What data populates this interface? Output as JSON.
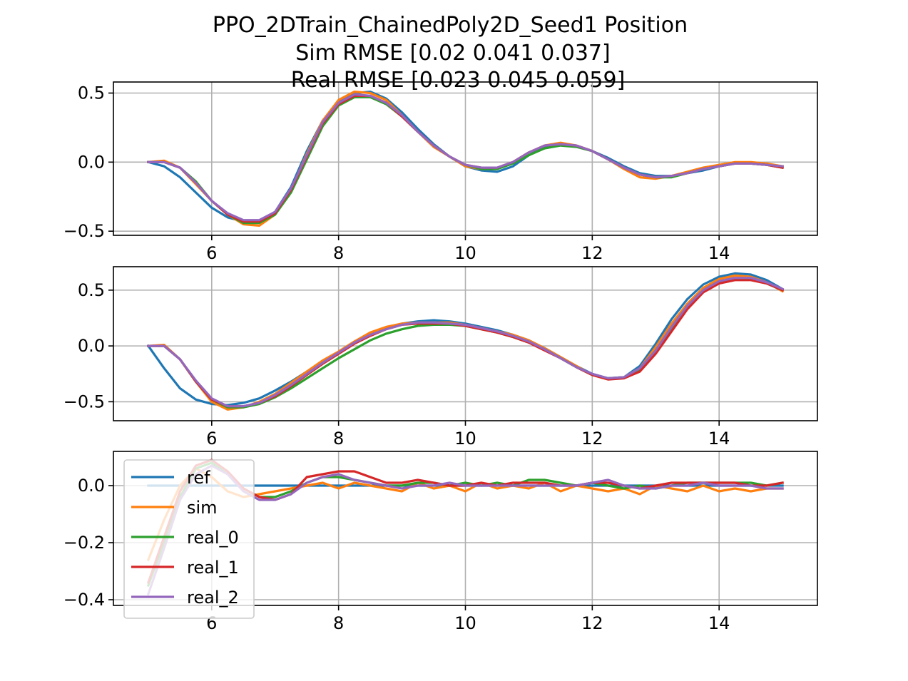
{
  "figure": {
    "title_lines": [
      "PPO_2DTrain_ChainedPoly2D_Seed1   Position",
      "Sim RMSE [0.02  0.041 0.037]",
      "Real RMSE [0.023 0.045 0.059]"
    ]
  },
  "chart_data": [
    {
      "type": "line",
      "title": "",
      "xlabel": "",
      "ylabel": "",
      "xlim": [
        4.45,
        15.55
      ],
      "ylim": [
        -0.53,
        0.58
      ],
      "xticks": [
        6,
        8,
        10,
        12,
        14
      ],
      "xtick_labels": [
        "6",
        "8",
        "10",
        "12",
        "14"
      ],
      "yticks": [
        -0.5,
        0.0,
        0.5
      ],
      "ytick_labels": [
        "−0.5",
        "0.0",
        "0.5"
      ],
      "grid": true,
      "x": [
        5.0,
        5.25,
        5.5,
        5.75,
        6.0,
        6.25,
        6.5,
        6.75,
        7.0,
        7.25,
        7.5,
        7.75,
        8.0,
        8.25,
        8.5,
        8.75,
        9.0,
        9.25,
        9.5,
        9.75,
        10.0,
        10.25,
        10.5,
        10.75,
        11.0,
        11.25,
        11.5,
        11.75,
        12.0,
        12.25,
        12.5,
        12.75,
        13.0,
        13.25,
        13.5,
        13.75,
        14.0,
        14.25,
        14.5,
        14.75,
        15.0
      ],
      "series": [
        {
          "name": "ref",
          "color": "#1f77b4",
          "values": [
            0.0,
            -0.03,
            -0.11,
            -0.22,
            -0.33,
            -0.4,
            -0.43,
            -0.43,
            -0.36,
            -0.18,
            0.08,
            0.3,
            0.44,
            0.5,
            0.51,
            0.46,
            0.36,
            0.24,
            0.13,
            0.04,
            -0.03,
            -0.06,
            -0.07,
            -0.03,
            0.05,
            0.11,
            0.13,
            0.12,
            0.08,
            0.03,
            -0.03,
            -0.08,
            -0.1,
            -0.1,
            -0.08,
            -0.06,
            -0.03,
            -0.01,
            -0.01,
            -0.02,
            -0.03
          ]
        },
        {
          "name": "sim",
          "color": "#ff7f0e",
          "values": [
            0.0,
            0.01,
            -0.04,
            -0.16,
            -0.28,
            -0.38,
            -0.45,
            -0.46,
            -0.38,
            -0.2,
            0.06,
            0.3,
            0.45,
            0.51,
            0.5,
            0.45,
            0.34,
            0.22,
            0.11,
            0.04,
            -0.03,
            -0.05,
            -0.05,
            0.0,
            0.07,
            0.12,
            0.14,
            0.12,
            0.08,
            0.02,
            -0.05,
            -0.11,
            -0.12,
            -0.1,
            -0.07,
            -0.04,
            -0.02,
            0.0,
            0.0,
            -0.01,
            -0.03
          ]
        },
        {
          "name": "real_0",
          "color": "#2ca02c",
          "values": [
            0.0,
            0.0,
            -0.04,
            -0.14,
            -0.28,
            -0.38,
            -0.44,
            -0.44,
            -0.38,
            -0.22,
            0.02,
            0.26,
            0.41,
            0.47,
            0.47,
            0.42,
            0.33,
            0.22,
            0.12,
            0.04,
            -0.02,
            -0.05,
            -0.05,
            -0.01,
            0.05,
            0.1,
            0.12,
            0.11,
            0.08,
            0.02,
            -0.04,
            -0.09,
            -0.11,
            -0.11,
            -0.08,
            -0.05,
            -0.03,
            -0.01,
            -0.01,
            -0.02,
            -0.04
          ]
        },
        {
          "name": "real_1",
          "color": "#d62728",
          "values": [
            0.0,
            0.0,
            -0.04,
            -0.15,
            -0.28,
            -0.38,
            -0.43,
            -0.43,
            -0.37,
            -0.2,
            0.04,
            0.28,
            0.42,
            0.48,
            0.48,
            0.43,
            0.33,
            0.22,
            0.12,
            0.04,
            -0.02,
            -0.04,
            -0.04,
            0.0,
            0.07,
            0.12,
            0.13,
            0.12,
            0.08,
            0.02,
            -0.04,
            -0.09,
            -0.11,
            -0.1,
            -0.08,
            -0.05,
            -0.03,
            -0.01,
            -0.01,
            -0.02,
            -0.04
          ]
        },
        {
          "name": "real_2",
          "color": "#9467bd",
          "values": [
            0.0,
            0.0,
            -0.04,
            -0.15,
            -0.28,
            -0.37,
            -0.42,
            -0.42,
            -0.36,
            -0.19,
            0.05,
            0.29,
            0.43,
            0.49,
            0.48,
            0.43,
            0.34,
            0.22,
            0.12,
            0.04,
            -0.02,
            -0.04,
            -0.04,
            0.0,
            0.07,
            0.12,
            0.13,
            0.12,
            0.08,
            0.02,
            -0.04,
            -0.09,
            -0.11,
            -0.1,
            -0.08,
            -0.05,
            -0.03,
            -0.01,
            -0.01,
            -0.02,
            -0.03
          ]
        }
      ]
    },
    {
      "type": "line",
      "title": "",
      "xlabel": "",
      "ylabel": "",
      "xlim": [
        4.45,
        15.55
      ],
      "ylim": [
        -0.67,
        0.71
      ],
      "xticks": [
        6,
        8,
        10,
        12,
        14
      ],
      "xtick_labels": [
        "6",
        "8",
        "10",
        "12",
        "14"
      ],
      "yticks": [
        -0.5,
        0.0,
        0.5
      ],
      "ytick_labels": [
        "−0.5",
        "0.0",
        "0.5"
      ],
      "grid": true,
      "x": [
        5.0,
        5.25,
        5.5,
        5.75,
        6.0,
        6.25,
        6.5,
        6.75,
        7.0,
        7.25,
        7.5,
        7.75,
        8.0,
        8.25,
        8.5,
        8.75,
        9.0,
        9.25,
        9.5,
        9.75,
        10.0,
        10.25,
        10.5,
        10.75,
        11.0,
        11.25,
        11.5,
        11.75,
        12.0,
        12.25,
        12.5,
        12.75,
        13.0,
        13.25,
        13.5,
        13.75,
        14.0,
        14.25,
        14.5,
        14.75,
        15.0
      ],
      "series": [
        {
          "name": "ref",
          "color": "#1f77b4",
          "values": [
            0.0,
            -0.2,
            -0.38,
            -0.48,
            -0.52,
            -0.53,
            -0.51,
            -0.47,
            -0.4,
            -0.32,
            -0.23,
            -0.14,
            -0.06,
            0.03,
            0.1,
            0.16,
            0.2,
            0.22,
            0.23,
            0.22,
            0.2,
            0.17,
            0.14,
            0.1,
            0.05,
            -0.02,
            -0.1,
            -0.18,
            -0.25,
            -0.29,
            -0.28,
            -0.18,
            0.02,
            0.24,
            0.42,
            0.55,
            0.62,
            0.65,
            0.64,
            0.59,
            0.51
          ]
        },
        {
          "name": "sim",
          "color": "#ff7f0e",
          "values": [
            0.0,
            0.01,
            -0.12,
            -0.32,
            -0.5,
            -0.57,
            -0.55,
            -0.5,
            -0.43,
            -0.33,
            -0.23,
            -0.13,
            -0.05,
            0.04,
            0.12,
            0.17,
            0.2,
            0.21,
            0.21,
            0.21,
            0.19,
            0.16,
            0.13,
            0.1,
            0.05,
            -0.02,
            -0.1,
            -0.18,
            -0.26,
            -0.3,
            -0.28,
            -0.2,
            -0.01,
            0.2,
            0.38,
            0.52,
            0.6,
            0.63,
            0.62,
            0.57,
            0.49
          ]
        },
        {
          "name": "real_0",
          "color": "#2ca02c",
          "values": [
            0.0,
            0.0,
            -0.12,
            -0.32,
            -0.48,
            -0.55,
            -0.55,
            -0.52,
            -0.46,
            -0.38,
            -0.29,
            -0.2,
            -0.11,
            -0.03,
            0.05,
            0.11,
            0.15,
            0.18,
            0.19,
            0.19,
            0.18,
            0.15,
            0.12,
            0.08,
            0.03,
            -0.03,
            -0.11,
            -0.19,
            -0.26,
            -0.29,
            -0.28,
            -0.21,
            -0.04,
            0.16,
            0.35,
            0.49,
            0.57,
            0.6,
            0.6,
            0.56,
            0.5
          ]
        },
        {
          "name": "real_1",
          "color": "#d62728",
          "values": [
            0.0,
            0.0,
            -0.12,
            -0.32,
            -0.48,
            -0.54,
            -0.54,
            -0.51,
            -0.45,
            -0.36,
            -0.26,
            -0.16,
            -0.07,
            0.02,
            0.09,
            0.15,
            0.19,
            0.2,
            0.2,
            0.2,
            0.18,
            0.15,
            0.12,
            0.08,
            0.03,
            -0.04,
            -0.11,
            -0.19,
            -0.26,
            -0.3,
            -0.29,
            -0.23,
            -0.07,
            0.13,
            0.33,
            0.48,
            0.56,
            0.59,
            0.59,
            0.56,
            0.5
          ]
        },
        {
          "name": "real_2",
          "color": "#9467bd",
          "values": [
            0.0,
            0.0,
            -0.12,
            -0.31,
            -0.47,
            -0.54,
            -0.54,
            -0.51,
            -0.44,
            -0.35,
            -0.25,
            -0.15,
            -0.06,
            0.03,
            0.1,
            0.15,
            0.19,
            0.21,
            0.21,
            0.2,
            0.19,
            0.16,
            0.13,
            0.09,
            0.04,
            -0.03,
            -0.11,
            -0.19,
            -0.25,
            -0.29,
            -0.28,
            -0.2,
            -0.04,
            0.17,
            0.36,
            0.5,
            0.58,
            0.61,
            0.61,
            0.57,
            0.51
          ]
        }
      ]
    },
    {
      "type": "line",
      "title": "",
      "xlabel": "",
      "ylabel": "",
      "xlim": [
        4.45,
        15.55
      ],
      "ylim": [
        -0.42,
        0.12
      ],
      "xticks": [
        6,
        8,
        10,
        12,
        14
      ],
      "xtick_labels": [
        "6",
        "8",
        "10",
        "12",
        "14"
      ],
      "yticks": [
        -0.4,
        -0.2,
        0.0
      ],
      "ytick_labels": [
        "−0.4",
        "−0.2",
        "0.0"
      ],
      "grid": true,
      "legend": {
        "placement": "lower-left",
        "entries": [
          "ref",
          "sim",
          "real_0",
          "real_1",
          "real_2"
        ]
      },
      "x": [
        5.0,
        5.25,
        5.5,
        5.75,
        6.0,
        6.25,
        6.5,
        6.75,
        7.0,
        7.25,
        7.5,
        7.75,
        8.0,
        8.25,
        8.5,
        8.75,
        9.0,
        9.25,
        9.5,
        9.75,
        10.0,
        10.25,
        10.5,
        10.75,
        11.0,
        11.25,
        11.5,
        11.75,
        12.0,
        12.25,
        12.5,
        12.75,
        13.0,
        13.25,
        13.5,
        13.75,
        14.0,
        14.25,
        14.5,
        14.75,
        15.0
      ],
      "series": [
        {
          "name": "ref",
          "color": "#1f77b4",
          "values": [
            0.0,
            0.0,
            0.0,
            0.0,
            0.0,
            0.0,
            0.0,
            0.0,
            0.0,
            0.0,
            0.0,
            0.0,
            0.0,
            0.0,
            0.0,
            0.0,
            0.0,
            0.0,
            0.0,
            0.0,
            0.0,
            0.0,
            0.0,
            0.0,
            0.0,
            0.0,
            0.0,
            0.0,
            0.0,
            0.0,
            0.0,
            0.0,
            0.0,
            0.0,
            0.0,
            0.0,
            0.0,
            0.0,
            0.0,
            0.0,
            0.0
          ]
        },
        {
          "name": "sim",
          "color": "#ff7f0e",
          "values": [
            -0.26,
            -0.12,
            0.0,
            0.06,
            0.03,
            -0.02,
            -0.04,
            -0.03,
            -0.02,
            -0.01,
            0.0,
            0.01,
            -0.01,
            0.01,
            0.0,
            -0.01,
            -0.02,
            0.01,
            -0.01,
            0.0,
            -0.02,
            0.01,
            -0.01,
            0.0,
            -0.01,
            0.01,
            -0.02,
            0.0,
            -0.01,
            -0.02,
            -0.01,
            -0.03,
            0.0,
            -0.01,
            -0.02,
            0.0,
            -0.02,
            -0.01,
            -0.02,
            -0.01,
            -0.01
          ]
        },
        {
          "name": "real_0",
          "color": "#2ca02c",
          "values": [
            -0.35,
            -0.2,
            -0.04,
            0.06,
            0.08,
            0.04,
            -0.01,
            -0.04,
            -0.04,
            -0.02,
            0.01,
            0.03,
            0.03,
            0.02,
            0.01,
            0.0,
            0.0,
            0.01,
            0.01,
            0.0,
            0.01,
            0.0,
            0.01,
            0.0,
            0.02,
            0.02,
            0.01,
            0.0,
            0.01,
            0.0,
            -0.01,
            0.0,
            -0.01,
            0.0,
            0.01,
            0.01,
            0.01,
            0.01,
            0.01,
            0.0,
            0.01
          ]
        },
        {
          "name": "real_1",
          "color": "#d62728",
          "values": [
            -0.34,
            -0.18,
            -0.02,
            0.07,
            0.09,
            0.05,
            -0.01,
            -0.04,
            -0.05,
            -0.03,
            0.03,
            0.04,
            0.05,
            0.05,
            0.03,
            0.01,
            0.01,
            0.02,
            0.01,
            0.0,
            0.0,
            0.01,
            0.0,
            0.01,
            0.01,
            0.01,
            0.0,
            0.0,
            0.01,
            0.01,
            0.0,
            -0.01,
            0.0,
            0.01,
            0.01,
            0.01,
            0.01,
            0.01,
            0.0,
            0.0,
            0.01
          ]
        },
        {
          "name": "real_2",
          "color": "#9467bd",
          "values": [
            -0.38,
            -0.22,
            -0.05,
            0.04,
            0.07,
            0.04,
            -0.02,
            -0.05,
            -0.05,
            -0.03,
            0.01,
            0.03,
            0.04,
            0.02,
            0.01,
            0.0,
            -0.01,
            0.0,
            0.0,
            0.01,
            0.0,
            0.0,
            0.0,
            0.0,
            0.0,
            0.0,
            0.0,
            0.0,
            0.01,
            0.02,
            0.0,
            -0.01,
            -0.01,
            0.0,
            0.0,
            0.01,
            0.0,
            0.0,
            0.0,
            -0.01,
            -0.01
          ]
        }
      ]
    }
  ]
}
